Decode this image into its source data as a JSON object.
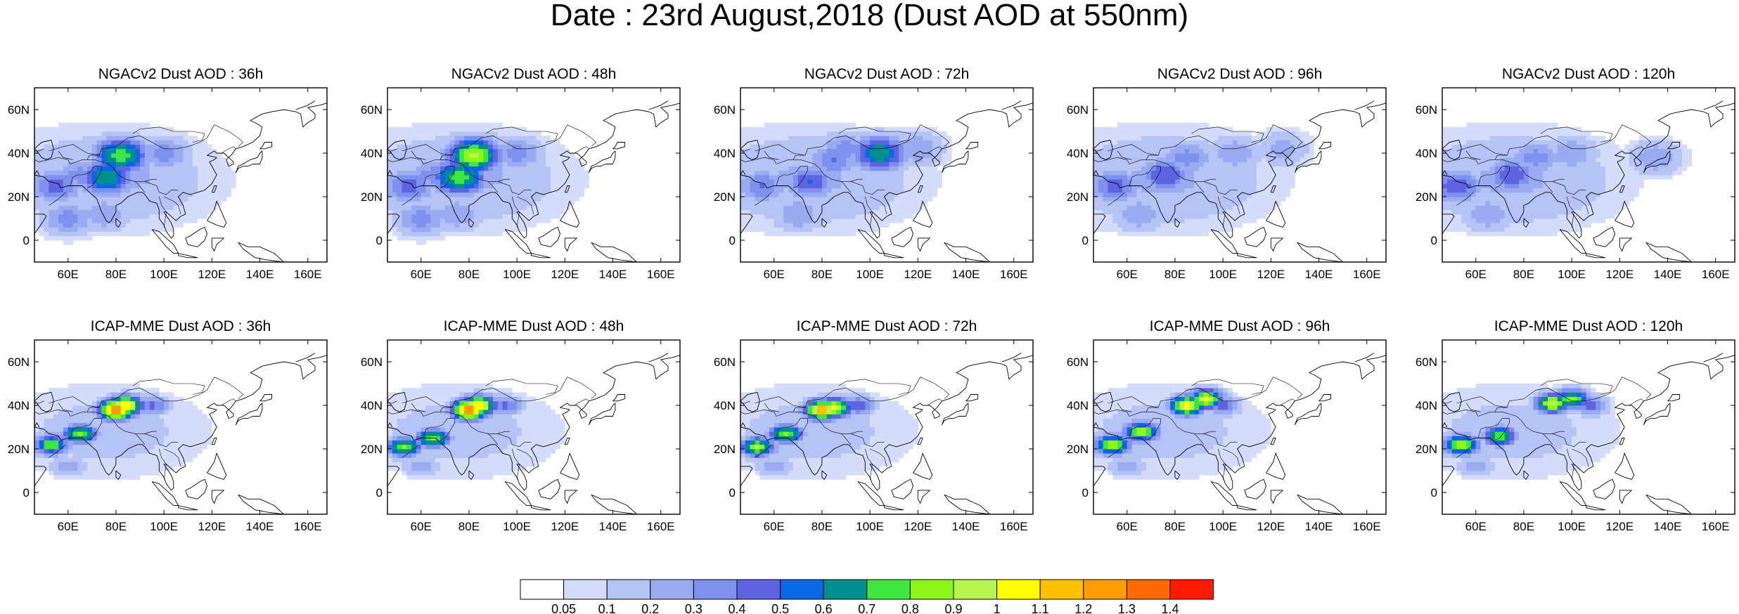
{
  "figure": {
    "title": "Date : 23rd August,2018 (Dust AOD at 550nm)"
  },
  "axes": {
    "lat_labels": [
      "60N",
      "40N",
      "20N",
      "0"
    ],
    "lat_values": [
      60,
      40,
      20,
      0
    ],
    "lon_labels": [
      "60E",
      "80E",
      "100E",
      "120E",
      "140E",
      "160E"
    ],
    "lon_values": [
      60,
      80,
      100,
      120,
      140,
      160
    ],
    "lon_range": [
      46,
      168
    ],
    "lat_range": [
      -10,
      70
    ]
  },
  "panels": [
    {
      "title": "NGACv2 Dust AOD : 36h",
      "model": "NGACv2",
      "lead": "36h",
      "hotspots": [
        [
          82,
          39,
          0.8
        ],
        [
          76,
          29,
          0.7
        ],
        [
          55,
          25,
          0.45
        ],
        [
          100,
          40,
          0.35
        ],
        [
          65,
          30,
          0.35
        ],
        [
          88,
          30,
          0.3
        ],
        [
          75,
          12,
          0.3
        ],
        [
          60,
          10,
          0.35
        ]
      ]
    },
    {
      "title": "NGACv2 Dust AOD : 48h",
      "model": "NGACv2",
      "lead": "48h",
      "hotspots": [
        [
          82,
          39,
          0.95
        ],
        [
          76,
          29,
          0.8
        ],
        [
          55,
          25,
          0.45
        ],
        [
          100,
          40,
          0.35
        ],
        [
          65,
          30,
          0.35
        ],
        [
          88,
          30,
          0.3
        ],
        [
          75,
          12,
          0.3
        ],
        [
          60,
          10,
          0.35
        ]
      ]
    },
    {
      "title": "NGACv2 Dust AOD : 72h",
      "model": "NGACv2",
      "lead": "72h",
      "hotspots": [
        [
          104,
          40,
          0.7
        ],
        [
          85,
          37,
          0.4
        ],
        [
          75,
          27,
          0.5
        ],
        [
          55,
          25,
          0.4
        ],
        [
          120,
          42,
          0.3
        ],
        [
          90,
          42,
          0.35
        ],
        [
          70,
          12,
          0.3
        ]
      ]
    },
    {
      "title": "NGACv2 Dust AOD : 96h",
      "model": "NGACv2",
      "lead": "96h",
      "hotspots": [
        [
          76,
          30,
          0.5
        ],
        [
          55,
          25,
          0.45
        ],
        [
          105,
          40,
          0.3
        ],
        [
          85,
          38,
          0.35
        ],
        [
          125,
          42,
          0.25
        ],
        [
          65,
          12,
          0.3
        ]
      ]
    },
    {
      "title": "NGACv2 Dust AOD : 120h",
      "model": "NGACv2",
      "lead": "120h",
      "hotspots": [
        [
          75,
          30,
          0.5
        ],
        [
          52,
          25,
          0.5
        ],
        [
          100,
          40,
          0.3
        ],
        [
          85,
          38,
          0.35
        ],
        [
          135,
          38,
          0.3
        ],
        [
          65,
          12,
          0.3
        ]
      ]
    },
    {
      "title": "ICAP-MME Dust AOD : 36h",
      "model": "ICAP-MME",
      "lead": "36h",
      "hotspots": [
        [
          80,
          38,
          1.35
        ],
        [
          84,
          40,
          1.15
        ],
        [
          65,
          27,
          0.85
        ],
        [
          53,
          22,
          0.8
        ],
        [
          95,
          40,
          0.45
        ],
        [
          60,
          12,
          0.3
        ]
      ]
    },
    {
      "title": "ICAP-MME Dust AOD : 48h",
      "model": "ICAP-MME",
      "lead": "48h",
      "hotspots": [
        [
          80,
          38,
          1.35
        ],
        [
          84,
          40,
          1.15
        ],
        [
          65,
          25,
          0.85
        ],
        [
          53,
          21,
          0.85
        ],
        [
          95,
          40,
          0.45
        ],
        [
          60,
          12,
          0.3
        ]
      ]
    },
    {
      "title": "ICAP-MME Dust AOD : 72h",
      "model": "ICAP-MME",
      "lead": "72h",
      "hotspots": [
        [
          80,
          38,
          1.25
        ],
        [
          85,
          39,
          1.05
        ],
        [
          65,
          27,
          0.85
        ],
        [
          53,
          21,
          0.9
        ],
        [
          95,
          40,
          0.5
        ],
        [
          60,
          12,
          0.3
        ]
      ]
    },
    {
      "title": "ICAP-MME Dust AOD : 96h",
      "model": "ICAP-MME",
      "lead": "96h",
      "hotspots": [
        [
          85,
          40,
          1.1
        ],
        [
          93,
          43,
          1.0
        ],
        [
          66,
          28,
          0.9
        ],
        [
          54,
          22,
          0.95
        ],
        [
          100,
          40,
          0.45
        ],
        [
          60,
          12,
          0.3
        ]
      ]
    },
    {
      "title": "ICAP-MME Dust AOD : 120h",
      "model": "ICAP-MME",
      "lead": "120h",
      "hotspots": [
        [
          92,
          41,
          1.0
        ],
        [
          100,
          43,
          0.85
        ],
        [
          70,
          26,
          0.8
        ],
        [
          54,
          22,
          0.95
        ],
        [
          108,
          40,
          0.45
        ],
        [
          60,
          12,
          0.3
        ]
      ]
    }
  ],
  "colorbar": {
    "labels": [
      "0.05",
      "0.1",
      "0.2",
      "0.3",
      "0.4",
      "0.5",
      "0.6",
      "0.7",
      "0.8",
      "0.9",
      "1",
      "1.1",
      "1.2",
      "1.3",
      "1.4"
    ],
    "colors": [
      "#ffffff",
      "#d4dcfa",
      "#b5c3f5",
      "#9aabf2",
      "#7f91ee",
      "#5e63e0",
      "#0a68e6",
      "#008f8f",
      "#3ee63e",
      "#8ef51a",
      "#b6f54d",
      "#ffff00",
      "#ffc000",
      "#ff9c00",
      "#ff6a00",
      "#ff1a00"
    ]
  }
}
